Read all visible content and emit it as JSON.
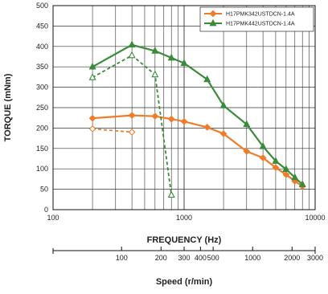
{
  "chart_data": {
    "type": "line",
    "xlabel": "FREQUENCY (Hz)",
    "ylabel": "TORQUE (mNm)",
    "xscale": "log",
    "xlim": [
      100,
      10000
    ],
    "ylim": [
      0,
      500
    ],
    "grid": true,
    "legend_position": "top-right",
    "yticks": [
      0,
      50,
      100,
      150,
      200,
      250,
      300,
      350,
      400,
      450,
      500
    ],
    "xticks": [
      100,
      1000,
      10000
    ],
    "xtick_labels": [
      "100",
      "1000",
      "10000"
    ],
    "series": [
      {
        "name": "H17PMK342USTDCN-1.4A",
        "color": "#f07c2a",
        "marker": "diamond",
        "line": "solid",
        "x": [
          200,
          400,
          600,
          800,
          1000,
          1500,
          2000,
          3000,
          4000,
          5000,
          6000,
          7000,
          8000
        ],
        "y": [
          224,
          231,
          229,
          222,
          216,
          202,
          186,
          143,
          127,
          103,
          86,
          70,
          57
        ]
      },
      {
        "name": "H17PMK442USTDCN-1.4A",
        "color": "#3a8c3a",
        "marker": "triangle",
        "line": "solid",
        "x": [
          200,
          400,
          600,
          800,
          1000,
          1500,
          2000,
          3000,
          4000,
          5000,
          6000,
          7000,
          8000
        ],
        "y": [
          350,
          404,
          389,
          372,
          359,
          319,
          255,
          209,
          155,
          119,
          99,
          79,
          62
        ]
      },
      {
        "color": "#f07c2a",
        "marker": "diamond-open",
        "line": "dashed",
        "x": [
          200,
          400
        ],
        "y": [
          198,
          190
        ]
      },
      {
        "color": "#3a8c3a",
        "marker": "triangle-open",
        "line": "dashed",
        "x": [
          200,
          400,
          600,
          800
        ],
        "y": [
          324,
          378,
          331,
          36
        ]
      }
    ],
    "secondary_axis": {
      "label": "Speed (r/min)",
      "ticks": [
        100,
        200,
        300,
        400,
        500,
        1000,
        2000,
        3000
      ],
      "tick_labels": [
        "100",
        "200",
        "300",
        "400",
        "500",
        "1000",
        "2000",
        "3000"
      ],
      "hz_per_rpm": 3.333
    }
  }
}
